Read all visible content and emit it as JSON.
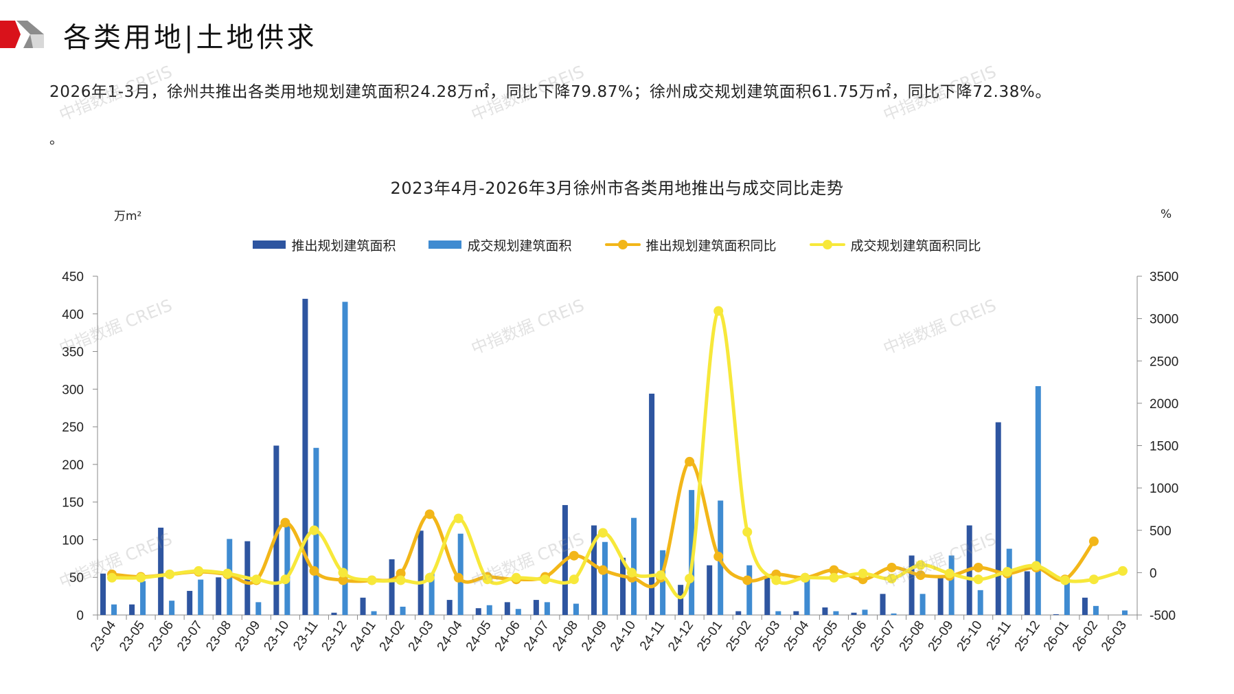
{
  "header": {
    "title": "各类用地|土地供求",
    "logo_colors": [
      "#d9121b",
      "#8c8c8c",
      "#d8d8d8"
    ]
  },
  "summary": {
    "text": "2026年1-3月，徐州共推出各类用地规划建筑面积24.28万㎡，同比下降79.87%；徐州成交规划建筑面积61.75万㎡，同比下降72.38%。",
    "extra": "。"
  },
  "watermark": "中指数据 CREIS",
  "chart_data": {
    "type": "bar+line",
    "title": "2023年4月-2026年3月徐州市各类用地推出与成交同比走势",
    "left_unit": "万m²",
    "right_unit": "%",
    "ylim_left": [
      0,
      450
    ],
    "yticks_left": [
      0,
      50,
      100,
      150,
      200,
      250,
      300,
      350,
      400,
      450
    ],
    "ylim_right": [
      -500,
      3500
    ],
    "yticks_right": [
      -500,
      0,
      500,
      1000,
      1500,
      2000,
      2500,
      3000,
      3500
    ],
    "grid": false,
    "legend_position": "top",
    "categories": [
      "23-04",
      "23-05",
      "23-06",
      "23-07",
      "23-08",
      "23-09",
      "23-10",
      "23-11",
      "23-12",
      "24-01",
      "24-02",
      "24-03",
      "24-04",
      "24-05",
      "24-06",
      "24-07",
      "24-08",
      "24-09",
      "24-10",
      "24-11",
      "24-12",
      "25-01",
      "25-02",
      "25-03",
      "25-04",
      "25-05",
      "25-06",
      "25-07",
      "25-08",
      "25-09",
      "25-10",
      "25-11",
      "25-12",
      "26-01",
      "26-02",
      "26-03"
    ],
    "series": [
      {
        "name": "推出规划建筑面积",
        "kind": "bar",
        "axis": "left",
        "color": "#2e55a0",
        "values": [
          55,
          14,
          116,
          32,
          50,
          98,
          225,
          420,
          3,
          23,
          74,
          112,
          20,
          9,
          17,
          20,
          146,
          119,
          76,
          294,
          40,
          66,
          5,
          50,
          5,
          10,
          3,
          28,
          79,
          53,
          119,
          256,
          58,
          1,
          23,
          0
        ]
      },
      {
        "name": "成交规划建筑面积",
        "kind": "bar",
        "axis": "left",
        "color": "#3f8bd1",
        "values": [
          14,
          45,
          19,
          47,
          101,
          17,
          120,
          222,
          416,
          5,
          11,
          56,
          108,
          13,
          8,
          17,
          15,
          97,
          129,
          86,
          166,
          152,
          66,
          5,
          49,
          5,
          7,
          2,
          28,
          79,
          33,
          88,
          304,
          50,
          12,
          6
        ]
      },
      {
        "name": "推出规划建筑面积同比",
        "kind": "line",
        "axis": "right",
        "color": "#f2b619",
        "values": [
          -20,
          -50,
          -20,
          10,
          -20,
          -90,
          590,
          20,
          -90,
          -90,
          -10,
          690,
          -60,
          -50,
          -80,
          -50,
          200,
          30,
          -60,
          -60,
          1310,
          190,
          -90,
          -20,
          -60,
          30,
          -80,
          60,
          -30,
          -40,
          60,
          -10,
          60,
          -80,
          370,
          null
        ]
      },
      {
        "name": "成交规划建筑面积同比",
        "kind": "line",
        "axis": "right",
        "color": "#f7e83a",
        "values": [
          -60,
          -60,
          -20,
          20,
          -10,
          -80,
          -80,
          500,
          0,
          -90,
          -90,
          -60,
          640,
          -80,
          -60,
          -80,
          -80,
          470,
          0,
          -30,
          -70,
          3090,
          480,
          -90,
          -60,
          -60,
          -10,
          -70,
          90,
          -10,
          -80,
          10,
          80,
          -90,
          -80,
          20
        ]
      }
    ]
  }
}
